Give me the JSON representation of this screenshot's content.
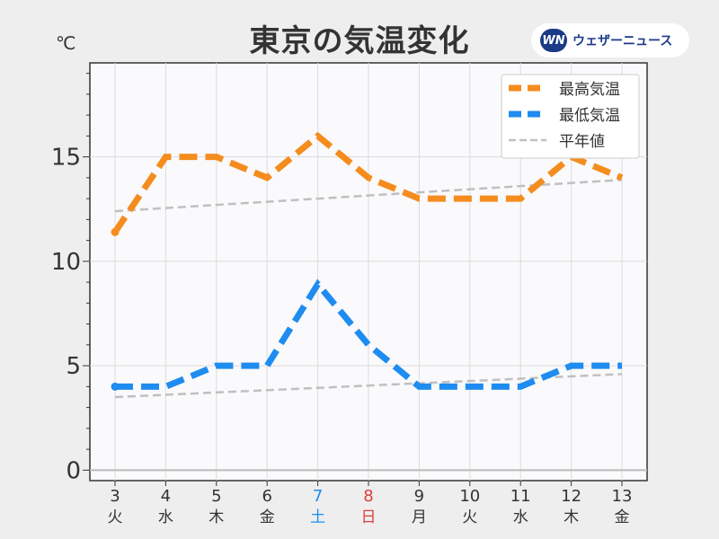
{
  "title": "東京の気温変化",
  "unit": "℃",
  "brand": {
    "logo": "WN",
    "name": "ウェザーニュース"
  },
  "colors": {
    "high": "#f58c1e",
    "low": "#1e8cf0",
    "normal": "#c0c0c0",
    "saturday": "#1e8cf0",
    "sunday": "#e03c3c",
    "text": "#333333"
  },
  "chart_data": {
    "type": "line",
    "categories": [
      "3",
      "4",
      "5",
      "6",
      "7",
      "8",
      "9",
      "10",
      "11",
      "12",
      "13"
    ],
    "weekdays": [
      "火",
      "水",
      "木",
      "金",
      "土",
      "日",
      "月",
      "火",
      "水",
      "木",
      "金"
    ],
    "series": [
      {
        "name": "最高気温",
        "values": [
          11.4,
          15,
          15,
          14,
          16,
          14,
          13,
          13,
          13,
          15,
          14
        ]
      },
      {
        "name": "最低気温",
        "values": [
          4,
          4,
          5,
          5,
          8.9,
          6,
          4,
          4,
          4,
          5,
          5
        ]
      },
      {
        "name": "平年値",
        "values": [
          12.4,
          null,
          null,
          null,
          null,
          null,
          null,
          null,
          null,
          null,
          13.9
        ]
      },
      {
        "name": "平年値",
        "values": [
          3.5,
          null,
          null,
          null,
          null,
          null,
          null,
          null,
          null,
          null,
          4.6
        ]
      }
    ],
    "ylim": [
      -0.5,
      19.5
    ],
    "yticks": [
      0,
      5,
      10,
      15
    ],
    "grid": true,
    "legend": "top-right"
  }
}
